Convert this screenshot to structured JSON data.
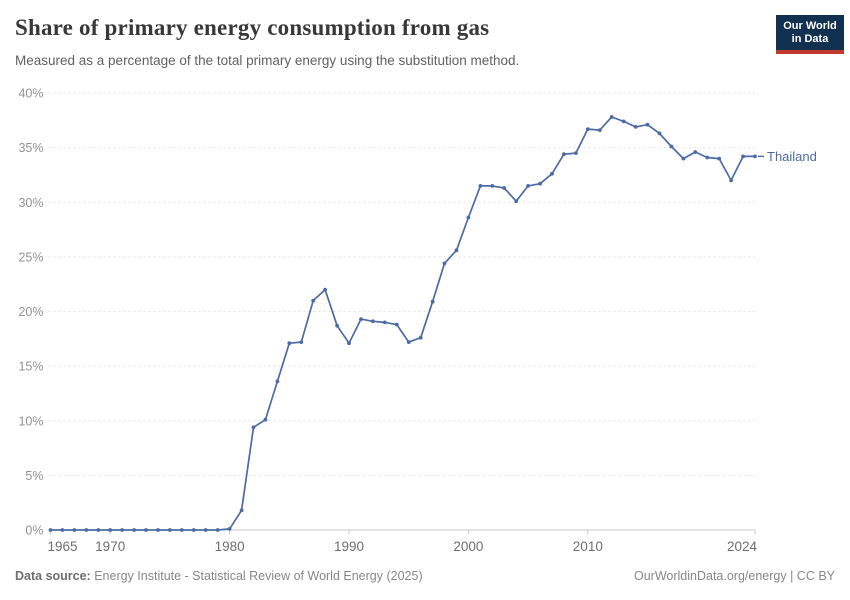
{
  "header": {
    "title": "Share of primary energy consumption from gas",
    "subtitle": "Measured as a percentage of the total primary energy using the substitution method."
  },
  "logo": {
    "line1": "Our World",
    "line2": "in Data",
    "bg_color": "#12304f",
    "bar_color": "#c0392f"
  },
  "chart_data": {
    "type": "line",
    "title": "Share of primary energy consumption from gas",
    "subtitle": "Measured as a percentage of the total primary energy using the substitution method.",
    "xlabel": "",
    "ylabel": "",
    "xlim": [
      1965,
      2024
    ],
    "ylim": [
      0,
      40
    ],
    "grid": "horizontal dashed",
    "legend_position": "end-of-line label",
    "x": [
      1965,
      1966,
      1967,
      1968,
      1969,
      1970,
      1971,
      1972,
      1973,
      1974,
      1975,
      1976,
      1977,
      1978,
      1979,
      1980,
      1981,
      1982,
      1983,
      1984,
      1985,
      1986,
      1987,
      1988,
      1989,
      1990,
      1991,
      1992,
      1993,
      1994,
      1995,
      1996,
      1997,
      1998,
      1999,
      2000,
      2001,
      2002,
      2003,
      2004,
      2005,
      2006,
      2007,
      2008,
      2009,
      2010,
      2011,
      2012,
      2013,
      2014,
      2015,
      2016,
      2017,
      2018,
      2019,
      2020,
      2021,
      2022,
      2023,
      2024
    ],
    "series": [
      {
        "name": "Thailand",
        "color": "#4c6ba6",
        "values": [
          0,
          0,
          0,
          0,
          0,
          0,
          0,
          0,
          0,
          0,
          0,
          0,
          0,
          0,
          0,
          0.1,
          1.8,
          9.4,
          10.1,
          13.6,
          17.1,
          17.2,
          21.0,
          22.0,
          18.7,
          17.1,
          19.3,
          19.1,
          19.0,
          18.8,
          17.2,
          17.6,
          20.9,
          24.4,
          25.6,
          28.6,
          31.5,
          31.5,
          31.3,
          30.1,
          31.5,
          31.7,
          32.6,
          34.4,
          34.5,
          36.7,
          36.6,
          37.8,
          37.4,
          36.9,
          37.1,
          36.3,
          35.1,
          34.0,
          34.6,
          34.1,
          34.0,
          32.0,
          34.2,
          34.2
        ]
      }
    ],
    "yticks": [
      0,
      5,
      10,
      15,
      20,
      25,
      30,
      35,
      40
    ],
    "ytick_suffix": "%",
    "xticks": [
      1965,
      1970,
      1980,
      1990,
      2000,
      2010,
      2024
    ],
    "colors": {
      "gridline": "#e0e0e0",
      "axis_line": "#c9c9c9",
      "ytick_label": "#929292",
      "xtick_label": "#6e6e6e"
    }
  },
  "footer": {
    "datasource_label": "Data source:",
    "datasource_text": "Energy Institute - Statistical Review of World Energy (2025)",
    "credit": "OurWorldinData.org/energy | CC BY"
  }
}
